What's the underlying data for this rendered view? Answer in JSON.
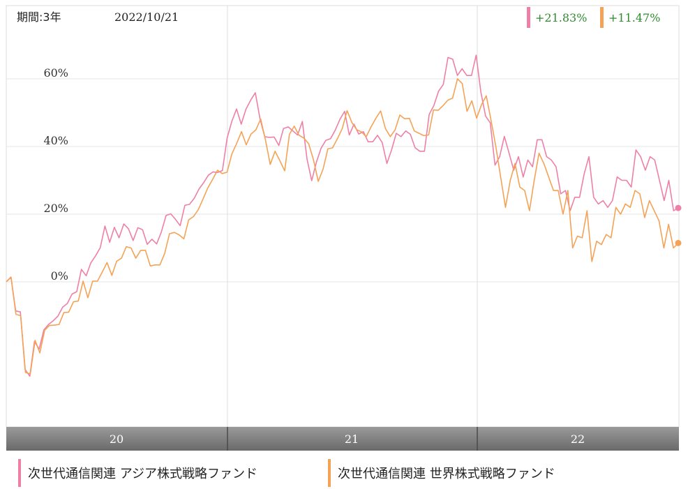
{
  "header": {
    "period": "期間:3年",
    "date": "2022/10/21"
  },
  "performance": [
    {
      "text": "+21.83%",
      "color": "#ee80a7"
    },
    {
      "text": "+11.47%",
      "color": "#f4a356"
    }
  ],
  "legend": [
    {
      "label": "次世代通信関連 アジア株式戦略ファンド",
      "color": "#ee80a7"
    },
    {
      "label": "次世代通信関連 世界株式戦略ファンド",
      "color": "#f4a356"
    }
  ],
  "chart_data": {
    "type": "line",
    "title": "",
    "xlabel": "",
    "ylabel": "",
    "ylim": [
      -40,
      80
    ],
    "yticks": [
      "0%",
      "20%",
      "40%",
      "60%"
    ],
    "ytick_values": [
      0,
      20,
      40,
      60
    ],
    "year_labels": [
      "20",
      "21",
      "22"
    ],
    "grid": true,
    "series": [
      {
        "name": "次世代通信関連 アジア株式戦略ファンド",
        "color": "#ee80a7",
        "values": [
          0.0,
          1.4,
          -8.6,
          -8.9,
          -25.9,
          -27.9,
          -17.6,
          -19.9,
          -14.2,
          -12.6,
          -11.5,
          -10.1,
          -7.5,
          -6.4,
          -3.6,
          -2.9,
          3.7,
          1.8,
          5.6,
          7.7,
          10.1,
          16.5,
          11.7,
          16.1,
          13.0,
          17.1,
          15.7,
          12.2,
          16.0,
          15.4,
          11.1,
          12.6,
          11.2,
          14.7,
          19.6,
          20.1,
          18.5,
          16.6,
          22.6,
          22.9,
          24.7,
          27.4,
          29.3,
          31.5,
          32.5,
          32.3,
          32.9,
          42.5,
          47.4,
          51.1,
          46.6,
          51.0,
          53.7,
          55.9,
          48.1,
          42.9,
          42.7,
          42.8,
          40.3,
          45.3,
          45.8,
          44.6,
          43.4,
          47.4,
          36.3,
          29.9,
          35.4,
          39.5,
          41.8,
          42.3,
          44.8,
          48.0,
          50.4,
          43.4,
          46.6,
          43.7,
          44.4,
          41.4,
          41.4,
          43.3,
          41.2,
          35.0,
          39.0,
          43.9,
          42.9,
          44.6,
          43.6,
          39.6,
          38.6,
          38.6,
          49.5,
          52.1,
          56.4,
          58.3,
          66.3,
          65.8,
          61.0,
          63.0,
          61.0,
          61.0,
          67.0,
          56.0,
          49.0,
          47.0,
          34.5,
          37.0,
          43.0,
          38.0,
          33.0,
          37.0,
          31.0,
          36.0,
          34.0,
          42.0,
          42.0,
          37.0,
          36.0,
          34.0,
          26.0,
          27.0,
          21.0,
          25.0,
          25.0,
          32.0,
          37.0,
          25.0,
          23.0,
          24.0,
          22.0,
          24.0,
          31.0,
          30.0,
          30.0,
          28.0,
          39.0,
          37.0,
          33.0,
          37.0,
          36.0,
          30.0,
          24.0,
          30.0,
          21.0,
          21.83
        ]
      },
      {
        "name": "次世代通信関連 世界株式戦略ファンド",
        "color": "#f4a356",
        "values": [
          0.0,
          1.3,
          -9.6,
          -10.0,
          -26.8,
          -27.2,
          -17.3,
          -21.0,
          -14.3,
          -12.9,
          -12.8,
          -12.6,
          -9.1,
          -9.0,
          -5.9,
          -5.7,
          0.2,
          -4.7,
          0.2,
          0.2,
          2.9,
          5.7,
          1.9,
          6.1,
          7.0,
          10.4,
          10.0,
          7.0,
          9.3,
          9.3,
          4.7,
          5.0,
          5.0,
          8.4,
          14.2,
          14.6,
          13.9,
          12.7,
          18.3,
          19.3,
          21.3,
          24.5,
          27.8,
          30.3,
          33.0,
          32.0,
          32.4,
          37.8,
          40.9,
          44.4,
          40.5,
          43.7,
          44.9,
          48.1,
          42.0,
          34.7,
          38.6,
          35.8,
          32.8,
          43.6,
          46.0,
          43.3,
          42.5,
          40.8,
          36.1,
          29.7,
          33.3,
          39.3,
          39.6,
          42.3,
          45.3,
          50.6,
          47.1,
          45.0,
          44.3,
          42.9,
          45.8,
          48.3,
          50.5,
          45.3,
          42.9,
          44.9,
          49.3,
          48.2,
          48.3,
          44.6,
          43.9,
          43.2,
          43.4,
          50.8,
          50.7,
          52.1,
          53.7,
          54.3,
          60.0,
          58.6,
          50.4,
          53.5,
          48.4,
          52.3,
          55.0,
          47.8,
          40.0,
          31.0,
          22.0,
          30.0,
          35.0,
          28.0,
          27.0,
          21.0,
          30.0,
          38.0,
          35.0,
          31.0,
          27.0,
          27.0,
          20.0,
          27.0,
          10.0,
          13.5,
          13.0,
          21.0,
          6.0,
          12.0,
          11.0,
          14.0,
          13.0,
          22.0,
          20.0,
          23.0,
          22.0,
          27.0,
          26.0,
          19.0,
          24.0,
          21.0,
          18.0,
          10.0,
          17.0,
          10.0,
          11.47
        ]
      }
    ]
  }
}
